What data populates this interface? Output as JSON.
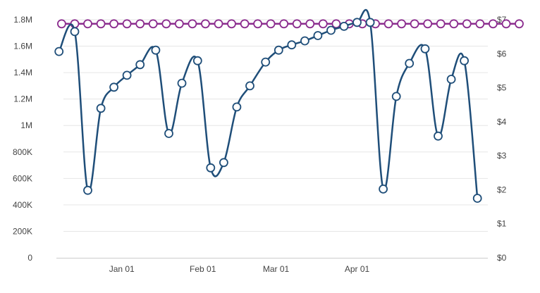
{
  "chart_data": {
    "type": "line",
    "title": "",
    "xlabel": "",
    "ylabel": "",
    "x_ticks": [
      {
        "label": "Jan 01",
        "date": "2025-01-01"
      },
      {
        "label": "Feb 01",
        "date": "2025-02-01"
      },
      {
        "label": "Mar 01",
        "date": "2025-03-01"
      },
      {
        "label": "Apr 01",
        "date": "2025-04-01"
      }
    ],
    "y_left": {
      "range": [
        0,
        1800000
      ],
      "tick_labels": [
        "0",
        "200K",
        "400K",
        "600K",
        "800K",
        "1M",
        "1.2M",
        "1.4M",
        "1.6M",
        "1.8M"
      ]
    },
    "y_right": {
      "range": [
        0,
        7
      ],
      "tick_labels": [
        "$0",
        "$1",
        "$2",
        "$3",
        "$4",
        "$5",
        "$6",
        "$7"
      ]
    },
    "grid": true,
    "legend": "none",
    "x": [
      "2024-12-09",
      "2024-12-14",
      "2024-12-19",
      "2024-12-24",
      "2024-12-29",
      "2025-01-03",
      "2025-01-08",
      "2025-01-13",
      "2025-01-18",
      "2025-01-23",
      "2025-01-28",
      "2025-02-02",
      "2025-02-07",
      "2025-02-12",
      "2025-02-17",
      "2025-02-22",
      "2025-02-27",
      "2025-03-04",
      "2025-03-09",
      "2025-03-14",
      "2025-03-19",
      "2025-03-24",
      "2025-03-29",
      "2025-04-03",
      "2025-04-08",
      "2025-04-13",
      "2025-04-18",
      "2025-04-23",
      "2025-04-28",
      "2025-05-03",
      "2025-05-08",
      "2025-05-13",
      "2025-05-18",
      "2025-05-23",
      "2025-05-28",
      "2025-06-02"
    ],
    "series": [
      {
        "axis": "right",
        "color": "#8b2c8e",
        "values": [
          6.88,
          6.88,
          6.88,
          6.88,
          6.88,
          6.88,
          6.88,
          6.88,
          6.88,
          6.88,
          6.88,
          6.88,
          6.88,
          6.88,
          6.88,
          6.88,
          6.88,
          6.88,
          6.88,
          6.88,
          6.88,
          6.88,
          6.88,
          6.88,
          6.88,
          6.88,
          6.88,
          6.88,
          6.88,
          6.88,
          6.88,
          6.88,
          6.88,
          6.88,
          6.88,
          6.88
        ]
      },
      {
        "axis": "left",
        "color": "#1f4e79",
        "points": [
          [
            "2024-12-08",
            1560000
          ],
          [
            "2024-12-14",
            1710000
          ],
          [
            "2024-12-19",
            510000
          ],
          [
            "2024-12-24",
            1130000
          ],
          [
            "2024-12-29",
            1290000
          ],
          [
            "2025-01-03",
            1380000
          ],
          [
            "2025-01-08",
            1460000
          ],
          [
            "2025-01-14",
            1570000
          ],
          [
            "2025-01-19",
            940000
          ],
          [
            "2025-01-24",
            1320000
          ],
          [
            "2025-01-30",
            1490000
          ],
          [
            "2025-02-04",
            680000
          ],
          [
            "2025-02-09",
            720000
          ],
          [
            "2025-02-14",
            1140000
          ],
          [
            "2025-02-19",
            1300000
          ],
          [
            "2025-02-25",
            1480000
          ],
          [
            "2025-03-02",
            1570000
          ],
          [
            "2025-03-07",
            1610000
          ],
          [
            "2025-03-12",
            1640000
          ],
          [
            "2025-03-17",
            1680000
          ],
          [
            "2025-03-22",
            1720000
          ],
          [
            "2025-03-27",
            1750000
          ],
          [
            "2025-04-01",
            1780000
          ],
          [
            "2025-04-06",
            1780000
          ],
          [
            "2025-04-11",
            520000
          ],
          [
            "2025-04-16",
            1220000
          ],
          [
            "2025-04-21",
            1470000
          ],
          [
            "2025-04-27",
            1580000
          ],
          [
            "2025-05-02",
            920000
          ],
          [
            "2025-05-07",
            1350000
          ],
          [
            "2025-05-12",
            1490000
          ],
          [
            "2025-05-17",
            450000
          ]
        ]
      }
    ]
  }
}
